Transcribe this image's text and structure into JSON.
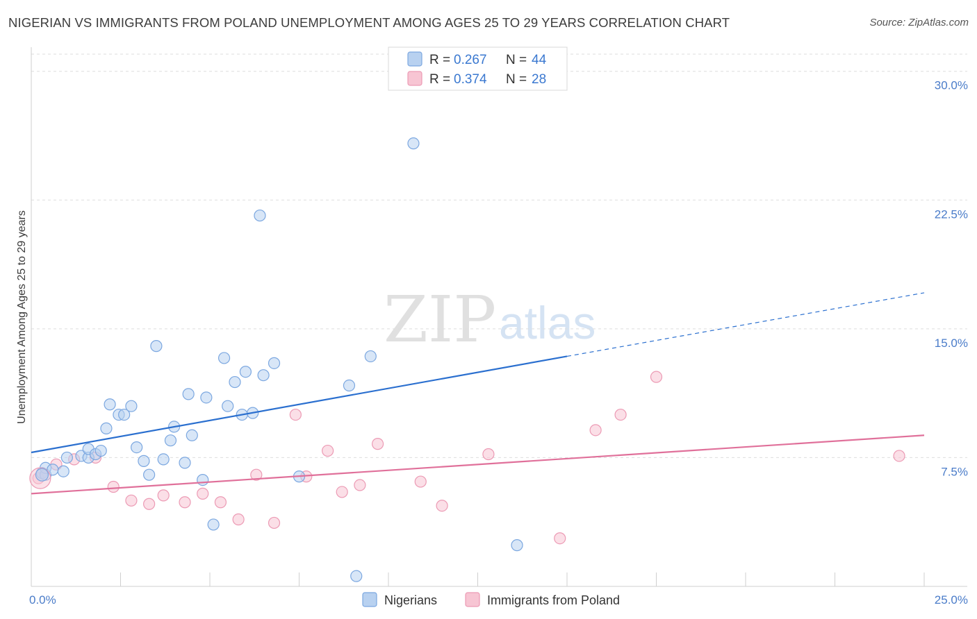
{
  "header": {
    "title": "NIGERIAN VS IMMIGRANTS FROM POLAND UNEMPLOYMENT AMONG AGES 25 TO 29 YEARS CORRELATION CHART",
    "source": "Source: ZipAtlas.com"
  },
  "watermark": {
    "zip": "ZIP",
    "atlas": "atlas"
  },
  "colors": {
    "blue_fill": "#b8d1f0",
    "blue_stroke": "#7ba7e0",
    "blue_line": "#2a6fcf",
    "pink_fill": "#f7c5d3",
    "pink_stroke": "#ec9ab4",
    "pink_line": "#e0709a",
    "grid": "#dddddd",
    "tick_label": "#4a7cc9"
  },
  "legend": {
    "rows": [
      {
        "r_label": "R = ",
        "r_value": "0.267",
        "n_label": "N = ",
        "n_value": "44"
      },
      {
        "r_label": "R = ",
        "r_value": "0.374",
        "n_label": "N = ",
        "n_value": "28"
      }
    ]
  },
  "chart_data": {
    "type": "scatter",
    "title": "NIGERIAN VS IMMIGRANTS FROM POLAND UNEMPLOYMENT AMONG AGES 25 TO 29 YEARS CORRELATION CHART",
    "xlabel": "",
    "ylabel": "Unemployment Among Ages 25 to 29 years",
    "xlim": [
      0,
      25
    ],
    "ylim": [
      0,
      31
    ],
    "y_ticks": [
      7.5,
      15.0,
      22.5,
      30.0
    ],
    "y_tick_labels": [
      "7.5%",
      "15.0%",
      "22.5%",
      "30.0%"
    ],
    "x_tick_labels": [
      "0.0%",
      "25.0%"
    ],
    "grid": true,
    "legend_position": "top-center",
    "series": [
      {
        "name": "Nigerians",
        "r": 0.267,
        "n": 44,
        "trend": {
          "x0": 0,
          "y0": 7.8,
          "x1": 15.0,
          "y1": 13.4,
          "dashed_to_x": 25,
          "dashed_to_y": 17.1
        },
        "points": [
          [
            0.3,
            6.6
          ],
          [
            0.4,
            6.5
          ],
          [
            0.4,
            6.9
          ],
          [
            0.6,
            6.8
          ],
          [
            0.9,
            6.7
          ],
          [
            1.0,
            7.5
          ],
          [
            1.4,
            7.6
          ],
          [
            1.6,
            7.5
          ],
          [
            1.6,
            8.0
          ],
          [
            1.8,
            7.7
          ],
          [
            1.95,
            7.9
          ],
          [
            2.1,
            9.2
          ],
          [
            2.2,
            10.6
          ],
          [
            2.45,
            10.0
          ],
          [
            2.6,
            10.0
          ],
          [
            2.8,
            10.5
          ],
          [
            2.95,
            8.1
          ],
          [
            3.15,
            7.3
          ],
          [
            3.3,
            6.5
          ],
          [
            3.5,
            14.0
          ],
          [
            3.7,
            7.4
          ],
          [
            3.9,
            8.5
          ],
          [
            4.0,
            9.3
          ],
          [
            4.3,
            7.2
          ],
          [
            4.4,
            11.2
          ],
          [
            4.5,
            8.8
          ],
          [
            4.8,
            6.2
          ],
          [
            4.9,
            11.0
          ],
          [
            5.1,
            3.6
          ],
          [
            5.4,
            13.3
          ],
          [
            5.5,
            10.5
          ],
          [
            5.7,
            11.9
          ],
          [
            5.9,
            10.0
          ],
          [
            6.0,
            12.5
          ],
          [
            6.2,
            10.1
          ],
          [
            6.4,
            21.6
          ],
          [
            6.5,
            12.3
          ],
          [
            6.8,
            13.0
          ],
          [
            7.5,
            6.4
          ],
          [
            8.9,
            11.7
          ],
          [
            9.1,
            0.6
          ],
          [
            9.5,
            13.4
          ],
          [
            10.7,
            25.8
          ],
          [
            13.6,
            2.4
          ]
        ]
      },
      {
        "name": "Immigrants from Poland",
        "r": 0.374,
        "n": 28,
        "trend": {
          "x0": 0,
          "y0": 5.4,
          "x1": 25,
          "y1": 8.8
        },
        "points": [
          [
            0.2,
            6.3
          ],
          [
            0.7,
            7.1
          ],
          [
            1.2,
            7.4
          ],
          [
            1.8,
            7.5
          ],
          [
            2.3,
            5.8
          ],
          [
            2.8,
            5.0
          ],
          [
            3.3,
            4.8
          ],
          [
            3.7,
            5.3
          ],
          [
            4.3,
            4.9
          ],
          [
            4.8,
            5.4
          ],
          [
            5.3,
            4.9
          ],
          [
            5.8,
            3.9
          ],
          [
            6.3,
            6.5
          ],
          [
            6.8,
            3.7
          ],
          [
            7.4,
            10.0
          ],
          [
            7.7,
            6.4
          ],
          [
            8.3,
            7.9
          ],
          [
            8.7,
            5.5
          ],
          [
            9.2,
            5.9
          ],
          [
            9.7,
            8.3
          ],
          [
            10.9,
            6.1
          ],
          [
            11.5,
            4.7
          ],
          [
            12.8,
            7.7
          ],
          [
            14.8,
            2.8
          ],
          [
            15.8,
            9.1
          ],
          [
            16.5,
            10.0
          ],
          [
            17.5,
            12.2
          ],
          [
            24.3,
            7.6
          ]
        ]
      }
    ]
  },
  "bottom_legend": {
    "items": [
      {
        "label": "Nigerians"
      },
      {
        "label": "Immigrants from Poland"
      }
    ]
  }
}
